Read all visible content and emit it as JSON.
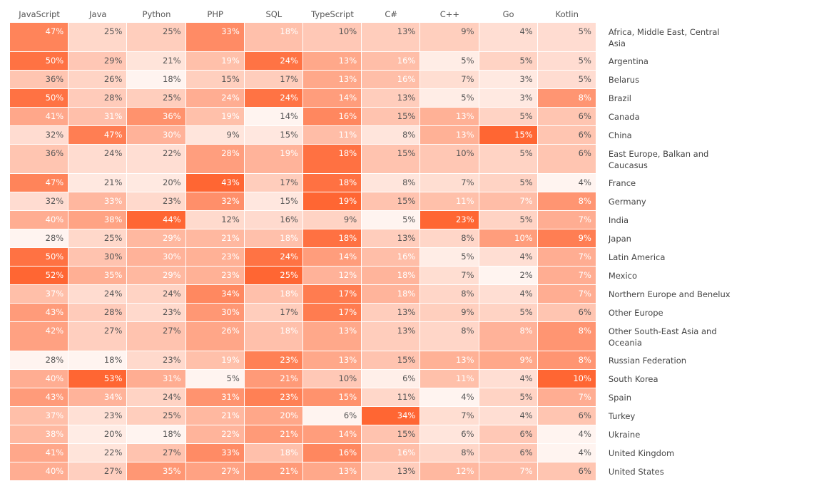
{
  "chart_data": {
    "type": "heatmap",
    "x": [
      "JavaScript",
      "Java",
      "Python",
      "PHP",
      "SQL",
      "TypeScript",
      "C#",
      "C++",
      "Go",
      "Kotlin"
    ],
    "y": [
      "Africa, Middle East, Central Asia",
      "Argentina",
      "Belarus",
      "Brazil",
      "Canada",
      "China",
      "East Europe, Balkan and Caucasus",
      "France",
      "Germany",
      "India",
      "Japan",
      "Latin America",
      "Mexico",
      "Northern Europe and Benelux",
      "Other Europe",
      "Other South-East Asia and Oceania",
      "Russian Federation",
      "South Korea",
      "Spain",
      "Turkey",
      "Ukraine",
      "United Kingdom",
      "United States"
    ],
    "values": [
      [
        47,
        25,
        25,
        33,
        18,
        10,
        13,
        9,
        4,
        5
      ],
      [
        50,
        29,
        21,
        19,
        24,
        13,
        16,
        5,
        5,
        5
      ],
      [
        36,
        26,
        18,
        15,
        17,
        13,
        16,
        7,
        3,
        5
      ],
      [
        50,
        28,
        25,
        24,
        24,
        14,
        13,
        5,
        3,
        8
      ],
      [
        41,
        31,
        36,
        19,
        14,
        16,
        15,
        13,
        5,
        6
      ],
      [
        32,
        47,
        30,
        9,
        15,
        11,
        8,
        13,
        15,
        6
      ],
      [
        36,
        24,
        22,
        28,
        19,
        18,
        15,
        10,
        5,
        6
      ],
      [
        47,
        21,
        20,
        43,
        17,
        18,
        8,
        7,
        5,
        4
      ],
      [
        32,
        33,
        23,
        32,
        15,
        19,
        15,
        11,
        7,
        8
      ],
      [
        40,
        38,
        44,
        12,
        16,
        9,
        5,
        23,
        5,
        7
      ],
      [
        28,
        25,
        29,
        21,
        18,
        18,
        13,
        8,
        10,
        9
      ],
      [
        50,
        30,
        30,
        23,
        24,
        14,
        16,
        5,
        4,
        7
      ],
      [
        52,
        35,
        29,
        23,
        25,
        12,
        18,
        7,
        2,
        7
      ],
      [
        37,
        24,
        24,
        34,
        18,
        17,
        18,
        8,
        4,
        7
      ],
      [
        43,
        28,
        23,
        30,
        17,
        17,
        13,
        9,
        5,
        6
      ],
      [
        42,
        27,
        27,
        26,
        18,
        13,
        13,
        8,
        8,
        8
      ],
      [
        28,
        18,
        23,
        19,
        23,
        13,
        15,
        13,
        9,
        8
      ],
      [
        40,
        53,
        31,
        5,
        21,
        10,
        6,
        11,
        4,
        10
      ],
      [
        43,
        34,
        24,
        31,
        23,
        15,
        11,
        4,
        5,
        7
      ],
      [
        37,
        23,
        25,
        21,
        20,
        6,
        34,
        7,
        4,
        6
      ],
      [
        38,
        20,
        18,
        22,
        21,
        14,
        15,
        6,
        6,
        4
      ],
      [
        41,
        22,
        27,
        33,
        18,
        16,
        16,
        8,
        6,
        4
      ],
      [
        40,
        27,
        35,
        27,
        21,
        13,
        13,
        12,
        7,
        6
      ]
    ],
    "value_labels": [
      [
        "47%",
        "25%",
        "25%",
        "33%",
        "18%",
        "10%",
        "13%",
        "9%",
        "4%",
        "5%"
      ],
      [
        "50%",
        "29%",
        "21%",
        "19%",
        "24%",
        "13%",
        "16%",
        "5%",
        "5%",
        "5%"
      ],
      [
        "36%",
        "26%",
        "18%",
        "15%",
        "17%",
        "13%",
        "16%",
        "7%",
        "3%",
        "5%"
      ],
      [
        "50%",
        "28%",
        "25%",
        "24%",
        "24%",
        "14%",
        "13%",
        "5%",
        "3%",
        "8%"
      ],
      [
        "41%",
        "31%",
        "36%",
        "19%",
        "14%",
        "16%",
        "15%",
        "13%",
        "5%",
        "6%"
      ],
      [
        "32%",
        "47%",
        "30%",
        "9%",
        "15%",
        "11%",
        "8%",
        "13%",
        "15%",
        "6%"
      ],
      [
        "36%",
        "24%",
        "22%",
        "28%",
        "19%",
        "18%",
        "15%",
        "10%",
        "5%",
        "6%"
      ],
      [
        "47%",
        "21%",
        "20%",
        "43%",
        "17%",
        "18%",
        "8%",
        "7%",
        "5%",
        "4%"
      ],
      [
        "32%",
        "33%",
        "23%",
        "32%",
        "15%",
        "19%",
        "15%",
        "11%",
        "7%",
        "8%"
      ],
      [
        "40%",
        "38%",
        "44%",
        "12%",
        "16%",
        "9%",
        "5%",
        "23%",
        "5%",
        "7%"
      ],
      [
        "28%",
        "25%",
        "29%",
        "21%",
        "18%",
        "18%",
        "13%",
        "8%",
        "10%",
        "9%"
      ],
      [
        "50%",
        "30%",
        "30%",
        "23%",
        "24%",
        "14%",
        "16%",
        "5%",
        "4%",
        "7%"
      ],
      [
        "52%",
        "35%",
        "29%",
        "23%",
        "25%",
        "12%",
        "18%",
        "7%",
        "2%",
        "7%"
      ],
      [
        "37%",
        "24%",
        "24%",
        "34%",
        "18%",
        "17%",
        "18%",
        "8%",
        "4%",
        "7%"
      ],
      [
        "43%",
        "28%",
        "23%",
        "30%",
        "17%",
        "17%",
        "13%",
        "9%",
        "5%",
        "6%"
      ],
      [
        "42%",
        "27%",
        "27%",
        "26%",
        "18%",
        "13%",
        "13%",
        "8%",
        "8%",
        "8%"
      ],
      [
        "28%",
        "18%",
        "23%",
        "19%",
        "23%",
        "13%",
        "15%",
        "13%",
        "9%",
        "8%"
      ],
      [
        "40%",
        "53%",
        "31%",
        "5%",
        "21%",
        "10%",
        "6%",
        "11%",
        "4%",
        "10%"
      ],
      [
        "43%",
        "34%",
        "24%",
        "31%",
        "23%",
        "15%",
        "11%",
        "4%",
        "5%",
        "7%"
      ],
      [
        "37%",
        "23%",
        "25%",
        "21%",
        "20%",
        "6%",
        "34%",
        "7%",
        "4%",
        "6%"
      ],
      [
        "38%",
        "20%",
        "18%",
        "22%",
        "21%",
        "14%",
        "15%",
        "6%",
        "6%",
        "4%"
      ],
      [
        "41%",
        "22%",
        "27%",
        "33%",
        "18%",
        "16%",
        "16%",
        "8%",
        "6%",
        "4%"
      ],
      [
        "40%",
        "27%",
        "35%",
        "27%",
        "21%",
        "13%",
        "13%",
        "12%",
        "7%",
        "6%"
      ]
    ],
    "color_low": "#fff4f0",
    "color_high": "#ff6633"
  }
}
